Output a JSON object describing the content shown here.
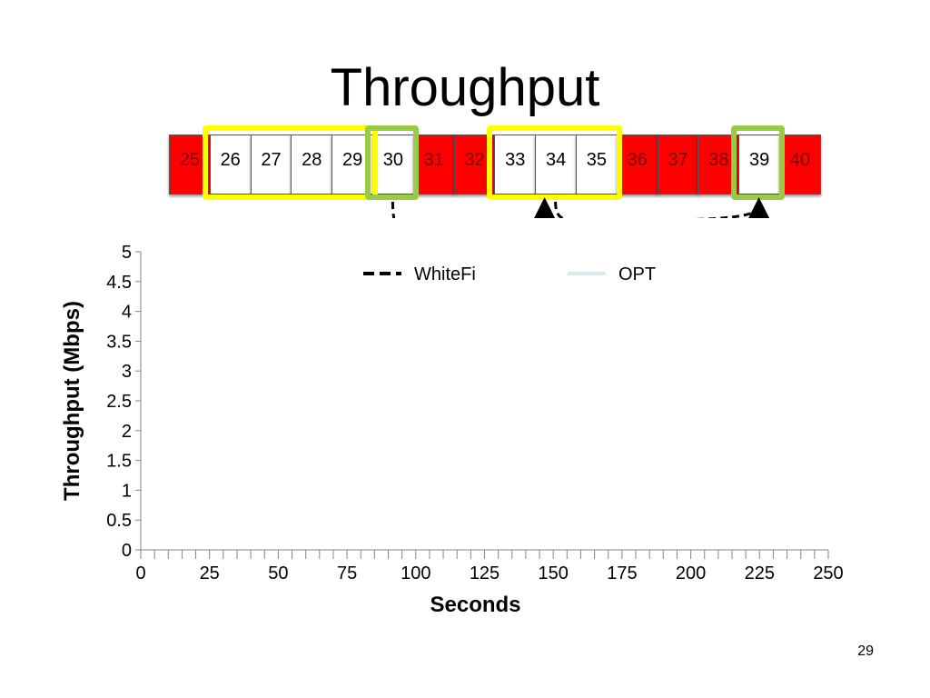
{
  "slide": {
    "title": "Throughput",
    "page_number": "29"
  },
  "channels": [
    {
      "label": "25",
      "state": "occupied"
    },
    {
      "label": "26",
      "state": "free"
    },
    {
      "label": "27",
      "state": "free"
    },
    {
      "label": "28",
      "state": "free"
    },
    {
      "label": "29",
      "state": "free"
    },
    {
      "label": "30",
      "state": "free"
    },
    {
      "label": "31",
      "state": "occupied"
    },
    {
      "label": "32",
      "state": "occupied"
    },
    {
      "label": "33",
      "state": "free"
    },
    {
      "label": "34",
      "state": "free"
    },
    {
      "label": "35",
      "state": "free"
    },
    {
      "label": "36",
      "state": "occupied"
    },
    {
      "label": "37",
      "state": "occupied"
    },
    {
      "label": "38",
      "state": "occupied"
    },
    {
      "label": "39",
      "state": "free"
    },
    {
      "label": "40",
      "state": "occupied"
    }
  ],
  "channel_highlights": [
    {
      "channels": [
        "26",
        "29"
      ],
      "color": "#ffff00"
    },
    {
      "channels": [
        "30",
        "30"
      ],
      "color": "#99cc44"
    },
    {
      "channels": [
        "33",
        "35"
      ],
      "color": "#ffff00"
    },
    {
      "channels": [
        "39",
        "39"
      ],
      "color": "#99cc44"
    }
  ],
  "channel_moves": [
    {
      "from": "30",
      "to": "34"
    },
    {
      "from": "34",
      "to": "39"
    }
  ],
  "colors": {
    "occupied": "#ff0000",
    "free": "#ffffff",
    "highlight_wide": "#ffff00",
    "highlight_narrow": "#99cc44",
    "whitefi_series": "#000000",
    "opt_series": "#dbe8ee"
  },
  "chart_data": {
    "type": "line",
    "title": "",
    "xlabel": "Seconds",
    "ylabel": "Throughput (Mbps)",
    "xlim": [
      0,
      250
    ],
    "ylim": [
      0,
      5
    ],
    "x_ticks": [
      "0",
      "25",
      "50",
      "75",
      "100",
      "125",
      "150",
      "175",
      "200",
      "225",
      "250"
    ],
    "y_ticks": [
      "0",
      "0.5",
      "1",
      "1.5",
      "2",
      "2.5",
      "3",
      "3.5",
      "4",
      "4.5",
      "5"
    ],
    "grid": false,
    "legend_position": "top",
    "series": [
      {
        "name": "WhiteFi",
        "style": "dashed",
        "color": "#000000",
        "points": []
      },
      {
        "name": "OPT",
        "style": "solid",
        "color": "#dbe8ee",
        "points": []
      }
    ]
  }
}
